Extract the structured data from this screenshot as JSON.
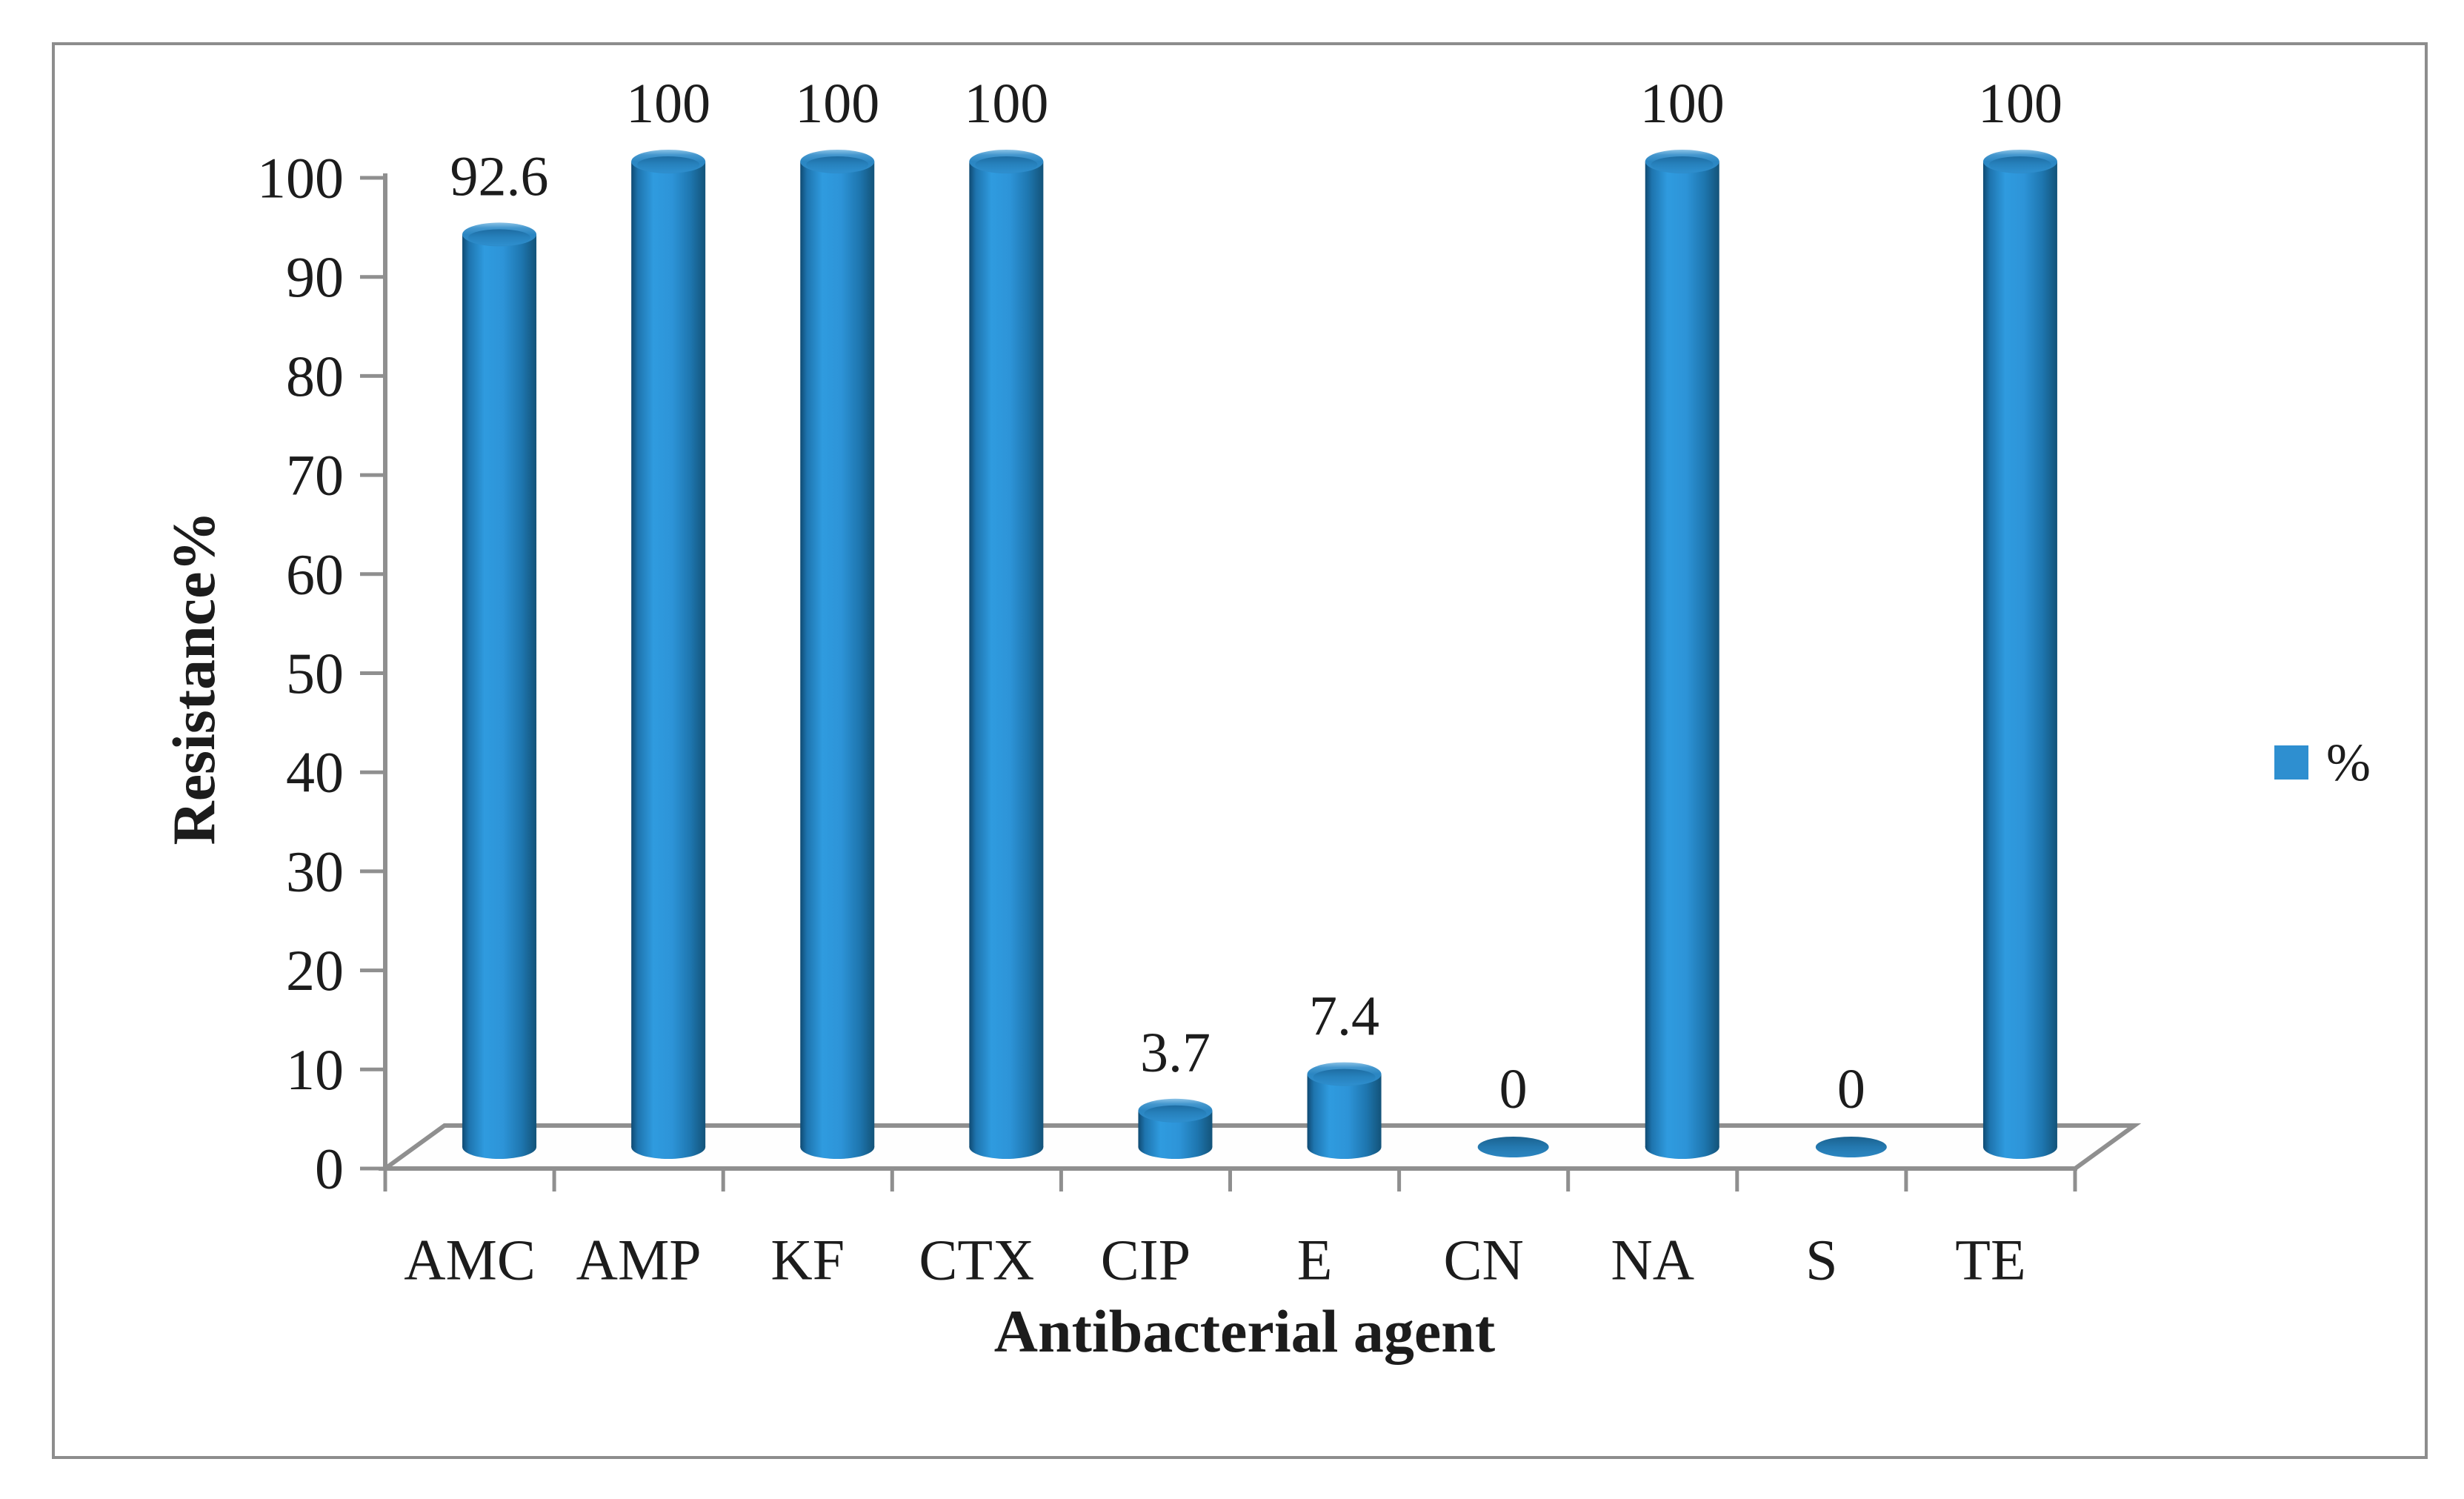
{
  "figure": {
    "y_axis_title": "Resistance%",
    "x_axis_title": "Antibacterial agent",
    "legend": {
      "label": "%",
      "swatch_color": "#2E8FD0"
    }
  },
  "chart_data": {
    "type": "bar",
    "subtype": "3d-cylinder",
    "title": "",
    "xlabel": "Antibacterial agent",
    "ylabel": "Resistance%",
    "categories": [
      "AMC",
      "AMP",
      "KF",
      "CTX",
      "CIP",
      "E",
      "CN",
      "NA",
      "S",
      "TE"
    ],
    "series": [
      {
        "name": "%",
        "values": [
          92.6,
          100,
          100,
          100,
          3.7,
          7.4,
          0,
          100,
          0,
          100
        ],
        "data_labels": [
          "92.6",
          "100",
          "100",
          "100",
          "3.7",
          "7.4",
          "0",
          "100",
          "0",
          "100"
        ]
      }
    ],
    "ylim": [
      0,
      100
    ],
    "ytick_interval": 10,
    "ytick_labels": [
      "0",
      "10",
      "20",
      "30",
      "40",
      "50",
      "60",
      "70",
      "80",
      "90",
      "100"
    ],
    "grid": false,
    "legend_position": "right-middle",
    "legend_entries": [
      "%"
    ],
    "bar_color": "#2E8FD0",
    "bar_edge_dark": "#10486F",
    "axis_color": "#8F8F8F",
    "frame_color": "#8D8D8D",
    "text_color": "#1C1C1C",
    "background_color": "#FFFFFF"
  }
}
